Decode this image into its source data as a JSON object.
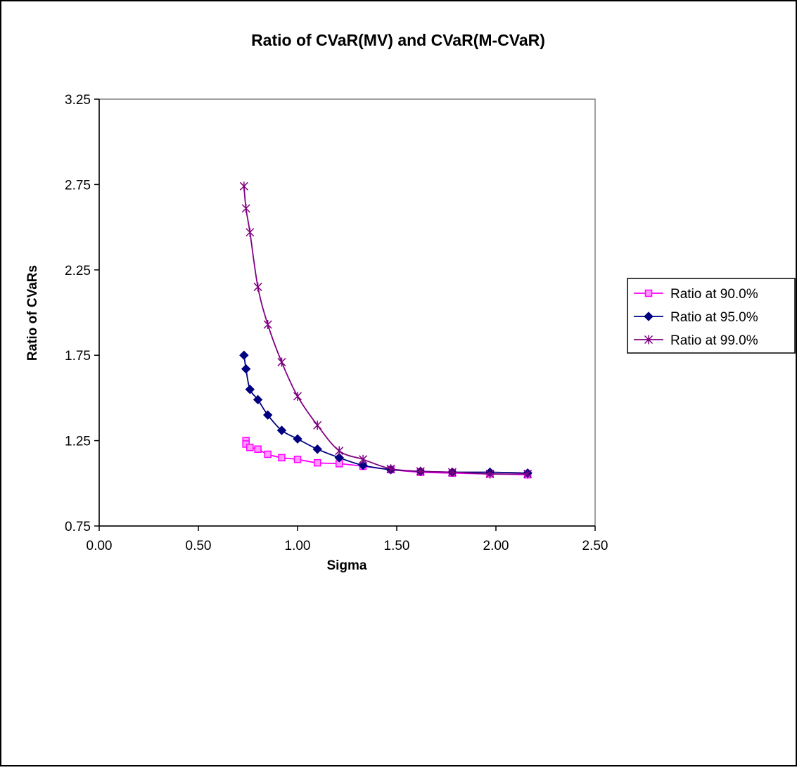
{
  "chart_data": {
    "type": "line",
    "title": "Ratio of CVaR(MV) and CVaR(M-CVaR)",
    "xlabel": "Sigma",
    "ylabel": "Ratio of CVaRs",
    "xlim": [
      0,
      2.5
    ],
    "ylim": [
      0.75,
      3.25
    ],
    "x_ticks": [
      "0.00",
      "0.50",
      "1.00",
      "1.50",
      "2.00",
      "2.50"
    ],
    "y_ticks": [
      "0.75",
      "1.25",
      "1.75",
      "2.25",
      "2.75",
      "3.25"
    ],
    "grid": false,
    "legend_position": "right",
    "series": [
      {
        "name": "Ratio at 90.0%",
        "color": "#ff00ff",
        "marker": "square",
        "points": [
          [
            0.74,
            1.25
          ],
          [
            0.74,
            1.23
          ],
          [
            0.76,
            1.21
          ],
          [
            0.8,
            1.2
          ],
          [
            0.85,
            1.17
          ],
          [
            0.92,
            1.15
          ],
          [
            1.0,
            1.14
          ],
          [
            1.1,
            1.12
          ],
          [
            1.21,
            1.115
          ],
          [
            1.33,
            1.1
          ],
          [
            1.47,
            1.08
          ],
          [
            1.62,
            1.065
          ],
          [
            1.78,
            1.06
          ],
          [
            1.97,
            1.055
          ],
          [
            2.16,
            1.05
          ]
        ]
      },
      {
        "name": "Ratio at 95.0%",
        "color": "#000080",
        "marker": "diamond",
        "points": [
          [
            0.73,
            1.75
          ],
          [
            0.74,
            1.67
          ],
          [
            0.76,
            1.55
          ],
          [
            0.8,
            1.49
          ],
          [
            0.85,
            1.4
          ],
          [
            0.92,
            1.31
          ],
          [
            1.0,
            1.26
          ],
          [
            1.1,
            1.2
          ],
          [
            1.21,
            1.15
          ],
          [
            1.33,
            1.105
          ],
          [
            1.47,
            1.08
          ],
          [
            1.62,
            1.07
          ],
          [
            1.78,
            1.065
          ],
          [
            1.97,
            1.065
          ],
          [
            2.16,
            1.06
          ]
        ]
      },
      {
        "name": "Ratio at 99.0%",
        "color": "#800080",
        "marker": "star",
        "points": [
          [
            0.73,
            2.74
          ],
          [
            0.74,
            2.61
          ],
          [
            0.76,
            2.47
          ],
          [
            0.8,
            2.15
          ],
          [
            0.85,
            1.93
          ],
          [
            0.92,
            1.71
          ],
          [
            1.0,
            1.51
          ],
          [
            1.1,
            1.34
          ],
          [
            1.21,
            1.19
          ],
          [
            1.33,
            1.14
          ],
          [
            1.47,
            1.085
          ],
          [
            1.62,
            1.07
          ],
          [
            1.78,
            1.065
          ],
          [
            1.97,
            1.055
          ],
          [
            2.16,
            1.055
          ]
        ]
      }
    ]
  }
}
